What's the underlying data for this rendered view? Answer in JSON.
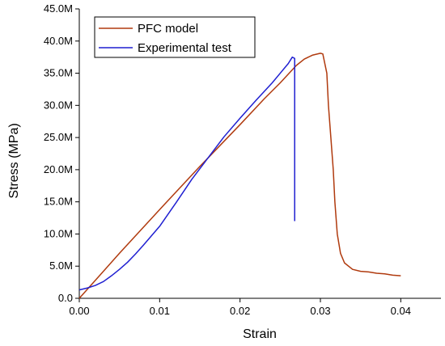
{
  "chart_data": {
    "type": "line",
    "title": "",
    "xlabel": "Strain",
    "ylabel": "Stress (MPa)",
    "xlim": [
      0,
      0.045
    ],
    "ylim": [
      0,
      45
    ],
    "x_ticks": [
      0.0,
      0.01,
      0.02,
      0.03,
      0.04
    ],
    "x_tick_labels": [
      "0.00",
      "0.01",
      "0.02",
      "0.03",
      "0.04"
    ],
    "y_ticks": [
      0,
      5,
      10,
      15,
      20,
      25,
      30,
      35,
      40,
      45
    ],
    "y_tick_labels": [
      "0.0",
      "5.0M",
      "10.0M",
      "15.0M",
      "20.0M",
      "25.0M",
      "30.0M",
      "35.0M",
      "40.0M",
      "45.0M"
    ],
    "grid": false,
    "legend_position": "top-left",
    "series": [
      {
        "name": "PFC model",
        "color": "#b03a0e",
        "points": [
          [
            0.0,
            0.0
          ],
          [
            0.005,
            7.0
          ],
          [
            0.01,
            13.8
          ],
          [
            0.015,
            20.5
          ],
          [
            0.02,
            27.0
          ],
          [
            0.023,
            31.0
          ],
          [
            0.025,
            33.5
          ],
          [
            0.027,
            36.2
          ],
          [
            0.028,
            37.2
          ],
          [
            0.029,
            37.8
          ],
          [
            0.03,
            38.1
          ],
          [
            0.0303,
            38.0
          ],
          [
            0.0308,
            35.0
          ],
          [
            0.031,
            30.0
          ],
          [
            0.0313,
            25.0
          ],
          [
            0.0316,
            20.0
          ],
          [
            0.0318,
            15.0
          ],
          [
            0.0321,
            10.0
          ],
          [
            0.0325,
            7.0
          ],
          [
            0.033,
            5.5
          ],
          [
            0.034,
            4.5
          ],
          [
            0.035,
            4.2
          ],
          [
            0.036,
            4.1
          ],
          [
            0.037,
            3.9
          ],
          [
            0.038,
            3.8
          ],
          [
            0.039,
            3.6
          ],
          [
            0.04,
            3.5
          ]
        ]
      },
      {
        "name": "Experimental test",
        "color": "#1f1fd1",
        "points": [
          [
            0.0,
            1.3
          ],
          [
            0.001,
            1.6
          ],
          [
            0.002,
            2.0
          ],
          [
            0.003,
            2.6
          ],
          [
            0.004,
            3.5
          ],
          [
            0.005,
            4.5
          ],
          [
            0.006,
            5.6
          ],
          [
            0.007,
            6.9
          ],
          [
            0.008,
            8.3
          ],
          [
            0.01,
            11.2
          ],
          [
            0.012,
            14.8
          ],
          [
            0.014,
            18.5
          ],
          [
            0.016,
            21.8
          ],
          [
            0.018,
            25.1
          ],
          [
            0.02,
            28.0
          ],
          [
            0.022,
            30.8
          ],
          [
            0.024,
            33.5
          ],
          [
            0.025,
            35.0
          ],
          [
            0.026,
            36.5
          ],
          [
            0.0265,
            37.5
          ],
          [
            0.0268,
            37.3
          ],
          [
            0.0268,
            12.0
          ]
        ]
      }
    ]
  }
}
